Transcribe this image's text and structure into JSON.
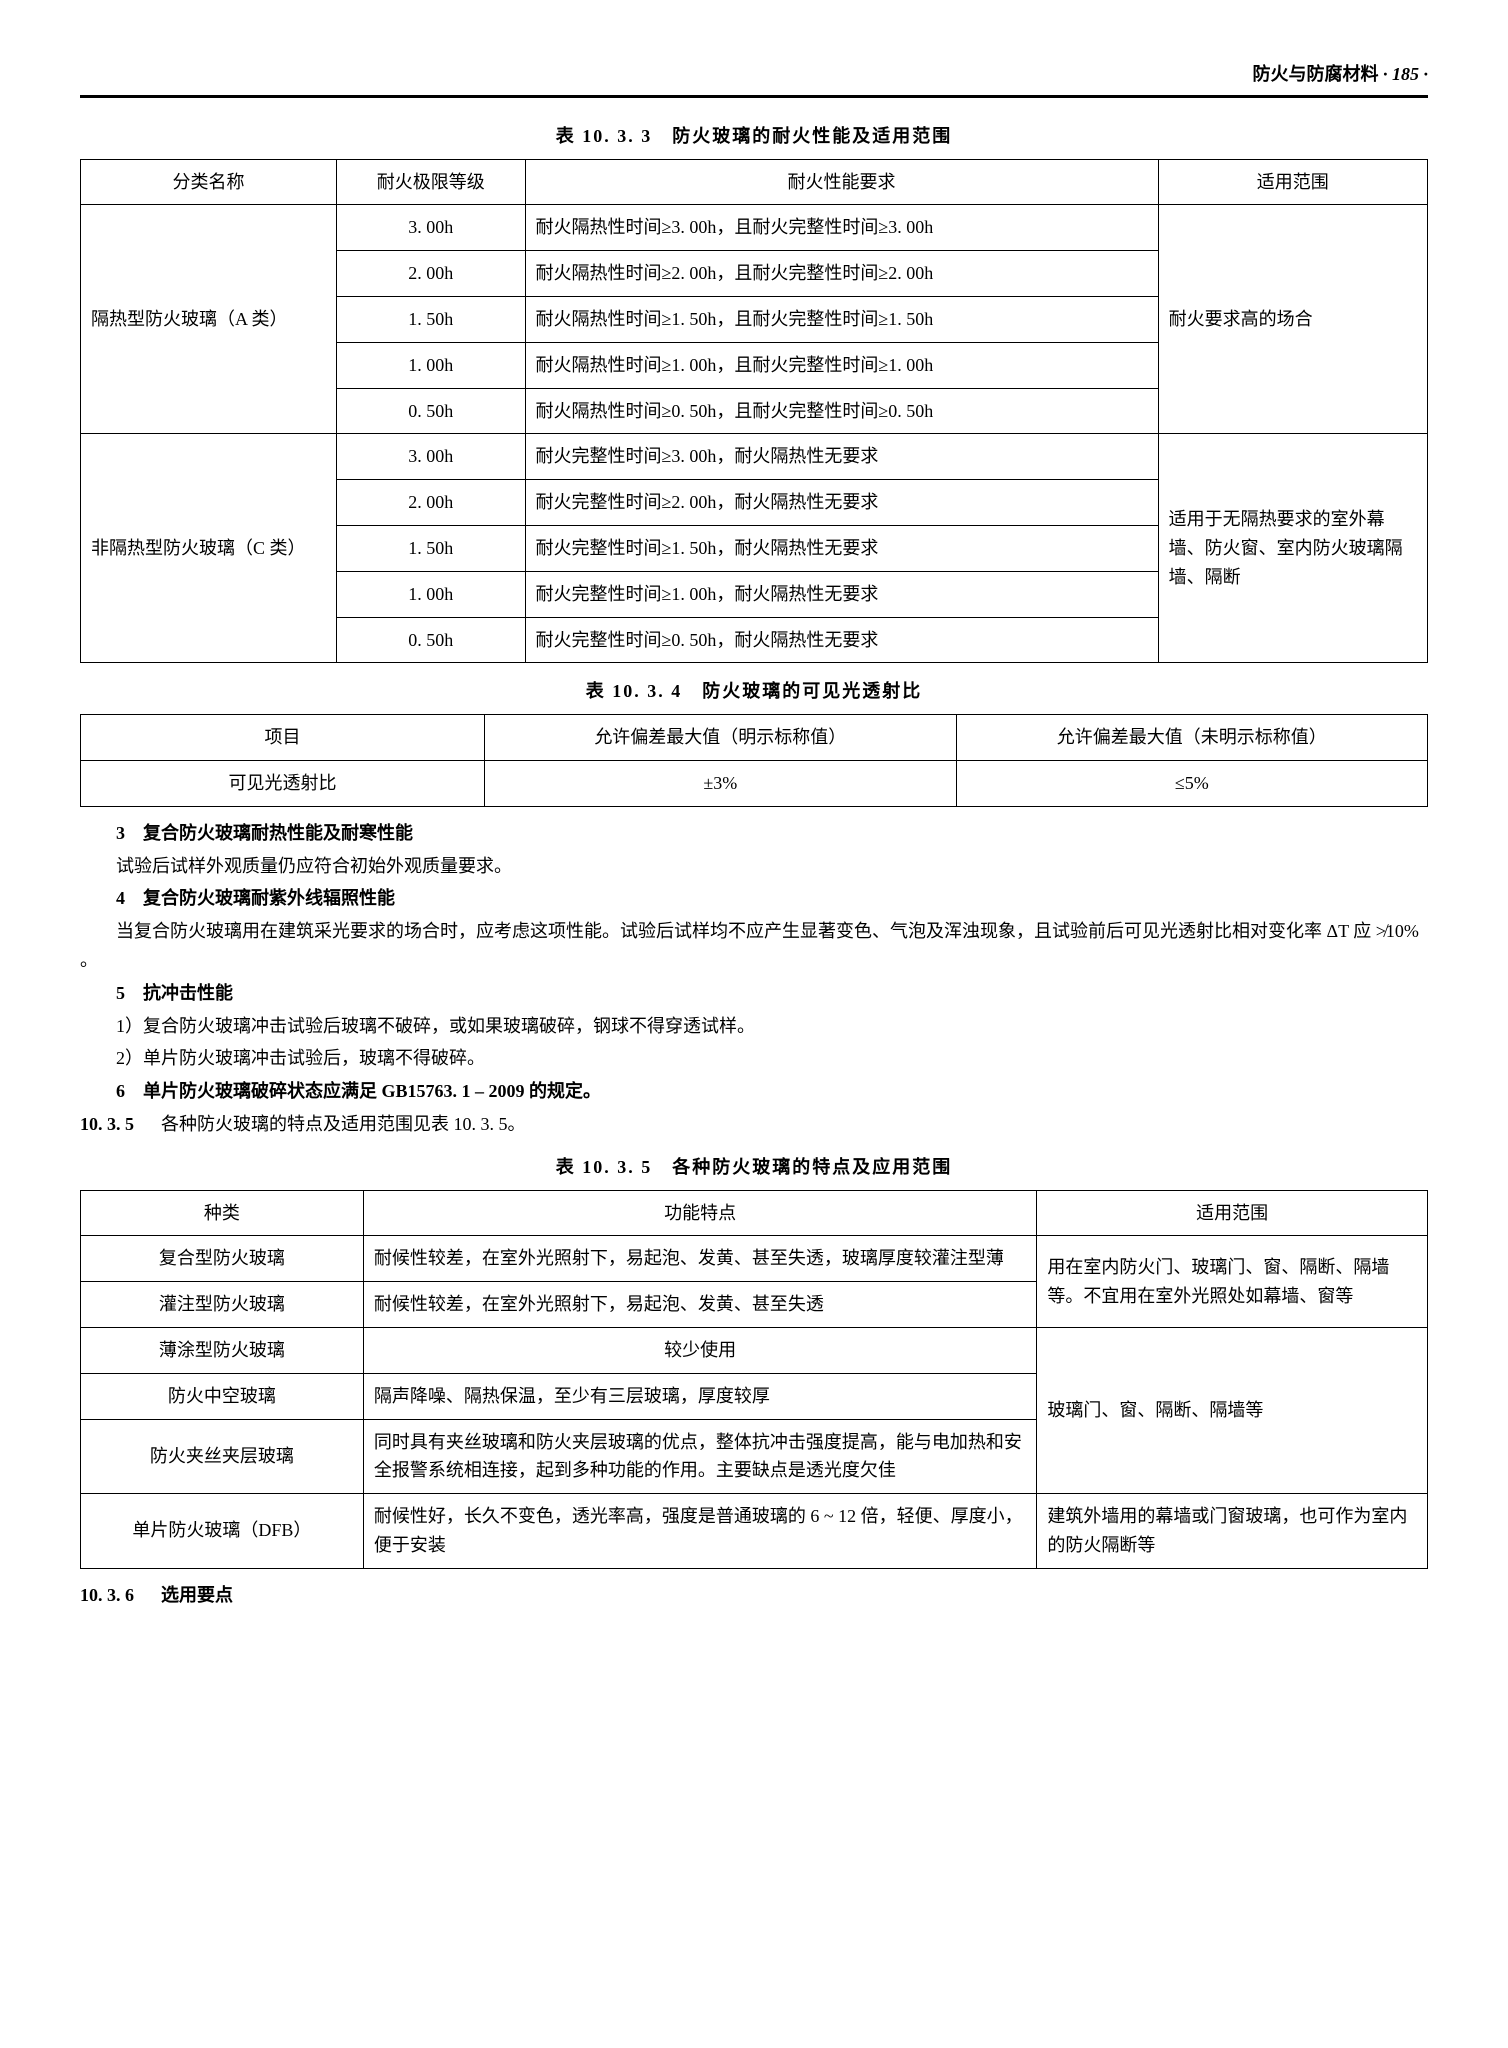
{
  "header": {
    "title": "防火与防腐材料",
    "page": "· 185 ·"
  },
  "table1": {
    "caption": "表 10. 3. 3　防火玻璃的耐火性能及适用范围",
    "headers": [
      "分类名称",
      "耐火极限等级",
      "耐火性能要求",
      "适用范围"
    ],
    "group1": {
      "name": "隔热型防火玻璃（A 类）",
      "scope": "耐火要求高的场合",
      "rows": [
        {
          "grade": "3. 00h",
          "req": "耐火隔热性时间≥3. 00h，且耐火完整性时间≥3. 00h"
        },
        {
          "grade": "2. 00h",
          "req": "耐火隔热性时间≥2. 00h，且耐火完整性时间≥2. 00h"
        },
        {
          "grade": "1. 50h",
          "req": "耐火隔热性时间≥1. 50h，且耐火完整性时间≥1. 50h"
        },
        {
          "grade": "1. 00h",
          "req": "耐火隔热性时间≥1. 00h，且耐火完整性时间≥1. 00h"
        },
        {
          "grade": "0. 50h",
          "req": "耐火隔热性时间≥0. 50h，且耐火完整性时间≥0. 50h"
        }
      ]
    },
    "group2": {
      "name": "非隔热型防火玻璃（C 类）",
      "scope": "适用于无隔热要求的室外幕墙、防火窗、室内防火玻璃隔墙、隔断",
      "rows": [
        {
          "grade": "3. 00h",
          "req": "耐火完整性时间≥3. 00h，耐火隔热性无要求"
        },
        {
          "grade": "2. 00h",
          "req": "耐火完整性时间≥2. 00h，耐火隔热性无要求"
        },
        {
          "grade": "1. 50h",
          "req": "耐火完整性时间≥1. 50h，耐火隔热性无要求"
        },
        {
          "grade": "1. 00h",
          "req": "耐火完整性时间≥1. 00h，耐火隔热性无要求"
        },
        {
          "grade": "0. 50h",
          "req": "耐火完整性时间≥0. 50h，耐火隔热性无要求"
        }
      ]
    }
  },
  "table2": {
    "caption": "表 10. 3. 4　防火玻璃的可见光透射比",
    "headers": [
      "项目",
      "允许偏差最大值（明示标称值）",
      "允许偏差最大值（未明示标称值）"
    ],
    "row": {
      "item": "可见光透射比",
      "c1": "±3%",
      "c2": "≤5%"
    }
  },
  "paras": {
    "p3_title": "3　复合防火玻璃耐热性能及耐寒性能",
    "p3_body": "试验后试样外观质量仍应符合初始外观质量要求。",
    "p4_title": "4　复合防火玻璃耐紫外线辐照性能",
    "p4_body": "当复合防火玻璃用在建筑采光要求的场合时，应考虑这项性能。试验后试样均不应产生显著变色、气泡及浑浊现象，且试验前后可见光透射比相对变化率 ΔT 应 ≯10% 。",
    "p5_title": "5　抗冲击性能",
    "p5_1": "1）复合防火玻璃冲击试验后玻璃不破碎，或如果玻璃破碎，钢球不得穿透试样。",
    "p5_2": "2）单片防火玻璃冲击试验后，玻璃不得破碎。",
    "p6": "6　单片防火玻璃破碎状态应满足 GB15763. 1 – 2009 的规定。",
    "sec1035": "10. 3. 5",
    "sec1035_text": "各种防火玻璃的特点及适用范围见表 10. 3. 5。"
  },
  "table3": {
    "caption": "表 10. 3. 5　各种防火玻璃的特点及应用范围",
    "headers": [
      "种类",
      "功能特点",
      "适用范围"
    ],
    "rows": [
      {
        "kind": "复合型防火玻璃",
        "feat": "耐候性较差，在室外光照射下，易起泡、发黄、甚至失透，玻璃厚度较灌注型薄"
      },
      {
        "kind": "灌注型防火玻璃",
        "feat": "耐候性较差，在室外光照射下，易起泡、发黄、甚至失透"
      },
      {
        "kind": "薄涂型防火玻璃",
        "feat": "较少使用"
      },
      {
        "kind": "防火中空玻璃",
        "feat": "隔声降噪、隔热保温，至少有三层玻璃，厚度较厚"
      },
      {
        "kind": "防火夹丝夹层玻璃",
        "feat": "同时具有夹丝玻璃和防火夹层玻璃的优点，整体抗冲击强度提高，能与电加热和安全报警系统相连接，起到多种功能的作用。主要缺点是透光度欠佳"
      },
      {
        "kind": "单片防火玻璃（DFB）",
        "feat": "耐候性好，长久不变色，透光率高，强度是普通玻璃的 6 ~ 12 倍，轻便、厚度小，便于安装"
      }
    ],
    "scope1": "用在室内防火门、玻璃门、窗、隔断、隔墙等。不宜用在室外光照处如幕墙、窗等",
    "scope2": "玻璃门、窗、隔断、隔墙等",
    "scope3": "建筑外墙用的幕墙或门窗玻璃，也可作为室内的防火隔断等"
  },
  "sec1036": {
    "num": "10. 3. 6",
    "title": "选用要点"
  }
}
